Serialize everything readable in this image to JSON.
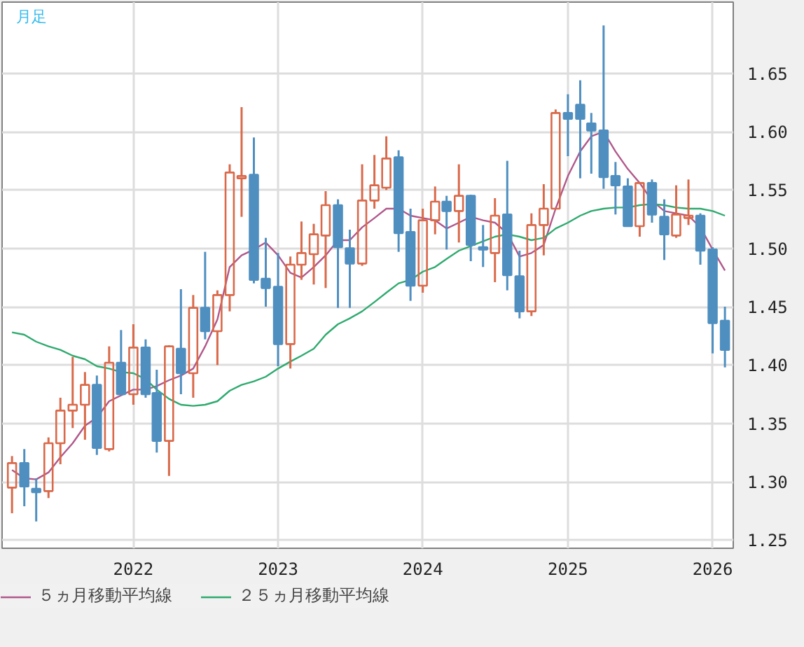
{
  "chart_data": {
    "type": "candlestick",
    "title": "月足",
    "x": [
      "2021-03",
      "2021-04",
      "2021-05",
      "2021-06",
      "2021-07",
      "2021-08",
      "2021-09",
      "2021-10",
      "2021-11",
      "2021-12",
      "2022-01",
      "2022-02",
      "2022-03",
      "2022-04",
      "2022-05",
      "2022-06",
      "2022-07",
      "2022-08",
      "2022-09",
      "2022-10",
      "2022-11",
      "2022-12",
      "2023-01",
      "2023-02",
      "2023-03",
      "2023-04",
      "2023-05",
      "2023-06",
      "2023-07",
      "2023-08",
      "2023-09",
      "2023-10",
      "2023-11",
      "2023-12",
      "2024-01",
      "2024-02",
      "2024-03",
      "2024-04",
      "2024-05",
      "2024-06",
      "2024-07",
      "2024-08",
      "2024-09",
      "2024-10",
      "2024-11",
      "2024-12",
      "2025-01",
      "2025-02",
      "2025-03",
      "2025-04",
      "2025-05",
      "2025-06",
      "2025-07",
      "2025-08",
      "2025-09",
      "2025-10",
      "2025-11",
      "2025-12",
      "2026-01",
      "2026-02"
    ],
    "ohlc": [
      [
        1.295,
        1.322,
        1.273,
        1.316
      ],
      [
        1.316,
        1.328,
        1.279,
        1.296
      ],
      [
        1.294,
        1.303,
        1.266,
        1.291
      ],
      [
        1.292,
        1.338,
        1.286,
        1.333
      ],
      [
        1.333,
        1.372,
        1.315,
        1.361
      ],
      [
        1.361,
        1.407,
        1.346,
        1.366
      ],
      [
        1.366,
        1.394,
        1.336,
        1.383
      ],
      [
        1.383,
        1.391,
        1.323,
        1.329
      ],
      [
        1.328,
        1.416,
        1.326,
        1.402
      ],
      [
        1.402,
        1.43,
        1.374,
        1.375
      ],
      [
        1.375,
        1.435,
        1.366,
        1.415
      ],
      [
        1.415,
        1.422,
        1.372,
        1.375
      ],
      [
        1.376,
        1.396,
        1.325,
        1.335
      ],
      [
        1.335,
        1.417,
        1.305,
        1.416
      ],
      [
        1.414,
        1.465,
        1.375,
        1.393
      ],
      [
        1.393,
        1.46,
        1.372,
        1.449
      ],
      [
        1.449,
        1.497,
        1.422,
        1.429
      ],
      [
        1.429,
        1.464,
        1.4,
        1.46
      ],
      [
        1.46,
        1.572,
        1.446,
        1.565
      ],
      [
        1.56,
        1.621,
        1.527,
        1.562
      ],
      [
        1.563,
        1.595,
        1.47,
        1.473
      ],
      [
        1.474,
        1.509,
        1.45,
        1.466
      ],
      [
        1.467,
        1.496,
        1.399,
        1.418
      ],
      [
        1.418,
        1.493,
        1.397,
        1.486
      ],
      [
        1.486,
        1.523,
        1.473,
        1.496
      ],
      [
        1.495,
        1.521,
        1.469,
        1.512
      ],
      [
        1.511,
        1.549,
        1.466,
        1.537
      ],
      [
        1.537,
        1.542,
        1.449,
        1.501
      ],
      [
        1.5,
        1.516,
        1.449,
        1.487
      ],
      [
        1.487,
        1.572,
        1.485,
        1.541
      ],
      [
        1.541,
        1.58,
        1.534,
        1.554
      ],
      [
        1.552,
        1.596,
        1.55,
        1.577
      ],
      [
        1.578,
        1.584,
        1.497,
        1.513
      ],
      [
        1.514,
        1.534,
        1.455,
        1.468
      ],
      [
        1.468,
        1.534,
        1.462,
        1.524
      ],
      [
        1.524,
        1.553,
        1.512,
        1.54
      ],
      [
        1.54,
        1.545,
        1.499,
        1.532
      ],
      [
        1.532,
        1.572,
        1.505,
        1.545
      ],
      [
        1.545,
        1.546,
        1.489,
        1.503
      ],
      [
        1.501,
        1.52,
        1.484,
        1.499
      ],
      [
        1.496,
        1.543,
        1.471,
        1.528
      ],
      [
        1.529,
        1.575,
        1.464,
        1.477
      ],
      [
        1.476,
        1.498,
        1.44,
        1.446
      ],
      [
        1.446,
        1.53,
        1.442,
        1.52
      ],
      [
        1.52,
        1.555,
        1.494,
        1.534
      ],
      [
        1.534,
        1.619,
        1.534,
        1.616
      ],
      [
        1.616,
        1.632,
        1.579,
        1.611
      ],
      [
        1.623,
        1.644,
        1.56,
        1.611
      ],
      [
        1.607,
        1.616,
        1.564,
        1.601
      ],
      [
        1.601,
        1.691,
        1.551,
        1.561
      ],
      [
        1.562,
        1.574,
        1.529,
        1.554
      ],
      [
        1.553,
        1.56,
        1.519,
        1.519
      ],
      [
        1.519,
        1.556,
        1.51,
        1.556
      ],
      [
        1.556,
        1.559,
        1.522,
        1.529
      ],
      [
        1.527,
        1.542,
        1.49,
        1.512
      ],
      [
        1.511,
        1.554,
        1.509,
        1.529
      ],
      [
        1.526,
        1.559,
        1.52,
        1.528
      ],
      [
        1.528,
        1.53,
        1.486,
        1.498
      ],
      [
        1.499,
        1.501,
        1.41,
        1.436
      ],
      [
        1.438,
        1.45,
        1.398,
        1.413
      ]
    ],
    "colors": [
      "#d9694a",
      "#4f8fc0",
      "#4f8fc0",
      "#d9694a",
      "#d9694a",
      "#d9694a",
      "#d9694a",
      "#4f8fc0",
      "#d9694a",
      "#4f8fc0",
      "#d9694a",
      "#4f8fc0",
      "#4f8fc0",
      "#d9694a",
      "#4f8fc0",
      "#d9694a",
      "#4f8fc0",
      "#d9694a",
      "#d9694a",
      "#d9694a",
      "#4f8fc0",
      "#4f8fc0",
      "#4f8fc0",
      "#d9694a",
      "#d9694a",
      "#d9694a",
      "#d9694a",
      "#4f8fc0",
      "#4f8fc0",
      "#d9694a",
      "#d9694a",
      "#d9694a",
      "#4f8fc0",
      "#4f8fc0",
      "#d9694a",
      "#d9694a",
      "#4f8fc0",
      "#d9694a",
      "#4f8fc0",
      "#4f8fc0",
      "#d9694a",
      "#4f8fc0",
      "#4f8fc0",
      "#d9694a",
      "#d9694a",
      "#d9694a",
      "#4f8fc0",
      "#4f8fc0",
      "#4f8fc0",
      "#4f8fc0",
      "#4f8fc0",
      "#4f8fc0",
      "#d9694a",
      "#4f8fc0",
      "#4f8fc0",
      "#d9694a",
      "#d9694a",
      "#4f8fc0",
      "#4f8fc0",
      "#4f8fc0"
    ],
    "series": [
      {
        "name": "５ヵ月移動平均線",
        "type": "line",
        "color": "#b0588a",
        "values": [
          1.31,
          1.303,
          1.302,
          1.308,
          1.321,
          1.333,
          1.348,
          1.355,
          1.369,
          1.374,
          1.379,
          1.379,
          1.382,
          1.387,
          1.391,
          1.397,
          1.416,
          1.439,
          1.484,
          1.494,
          1.499,
          1.505,
          1.494,
          1.479,
          1.475,
          1.484,
          1.494,
          1.507,
          1.507,
          1.518,
          1.526,
          1.534,
          1.534,
          1.528,
          1.526,
          1.524,
          1.517,
          1.522,
          1.527,
          1.524,
          1.522,
          1.513,
          1.493,
          1.496,
          1.503,
          1.534,
          1.562,
          1.583,
          1.596,
          1.6,
          1.583,
          1.568,
          1.556,
          1.541,
          1.532,
          1.53,
          1.528,
          1.518,
          1.499,
          1.481
        ]
      },
      {
        "name": "２５ヵ月移動平均線",
        "type": "line",
        "color": "#2eaa6e",
        "values": [
          1.428,
          1.426,
          1.42,
          1.416,
          1.413,
          1.408,
          1.405,
          1.399,
          1.397,
          1.394,
          1.393,
          1.388,
          1.379,
          1.371,
          1.366,
          1.365,
          1.366,
          1.369,
          1.378,
          1.383,
          1.386,
          1.39,
          1.397,
          1.403,
          1.408,
          1.414,
          1.426,
          1.435,
          1.44,
          1.446,
          1.454,
          1.462,
          1.47,
          1.473,
          1.48,
          1.484,
          1.491,
          1.498,
          1.502,
          1.506,
          1.51,
          1.512,
          1.51,
          1.507,
          1.509,
          1.517,
          1.522,
          1.528,
          1.532,
          1.534,
          1.535,
          1.535,
          1.537,
          1.538,
          1.537,
          1.535,
          1.534,
          1.534,
          1.532,
          1.528
        ]
      }
    ],
    "xlim": [
      "2021-02-04",
      "2026-02-22"
    ],
    "xticks": [
      "2022",
      "2023",
      "2024",
      "2025",
      "2026"
    ],
    "ylim": [
      1.243,
      1.711
    ],
    "yticks": [
      1.25,
      {
        "value": 1.3,
        "label": "1.30"
      },
      1.35,
      {
        "value": 1.4,
        "label": "1.40"
      },
      1.45,
      {
        "value": 1.5,
        "label": "1.50"
      },
      1.55,
      {
        "value": 1.6,
        "label": "1.60"
      },
      1.65
    ],
    "grid": true,
    "legend": "bottom",
    "marker": "none",
    "line_style": "solid"
  }
}
